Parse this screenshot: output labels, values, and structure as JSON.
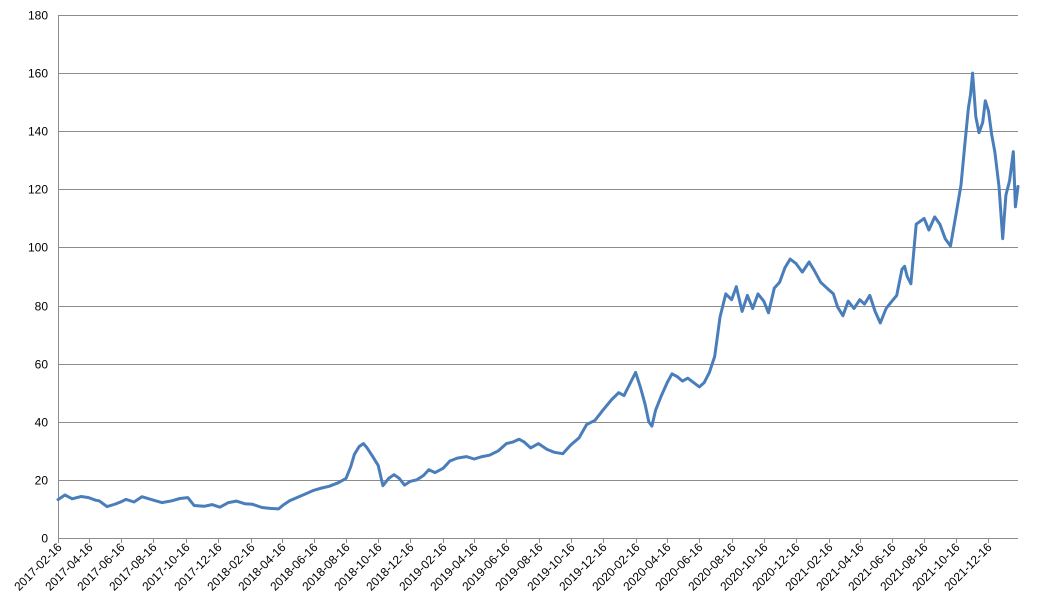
{
  "chart_data": {
    "type": "line",
    "title": "",
    "xlabel": "",
    "ylabel": "",
    "ylim": [
      0,
      180
    ],
    "y_ticks": [
      "0",
      "20",
      "40",
      "60",
      "80",
      "100",
      "120",
      "140",
      "160",
      "180"
    ],
    "xlim": [
      "2017-02-16",
      "2022-02-10"
    ],
    "x_tick_labels": [
      "2017-02-16",
      "2017-04-16",
      "2017-06-16",
      "2017-08-16",
      "2017-10-16",
      "2017-12-16",
      "2018-02-16",
      "2018-04-16",
      "2018-06-16",
      "2018-08-16",
      "2018-10-16",
      "2018-12-16",
      "2019-02-16",
      "2019-04-16",
      "2019-06-16",
      "2019-08-16",
      "2019-10-16",
      "2019-12-16",
      "2020-02-16",
      "2020-04-16",
      "2020-06-16",
      "2020-08-16",
      "2020-10-16",
      "2020-12-16",
      "2021-02-16",
      "2021-04-16",
      "2021-06-16",
      "2021-08-16",
      "2021-10-16",
      "2021-12-16"
    ],
    "grid": true,
    "legend": "none",
    "series_color": "#4a7ebb",
    "series": [
      {
        "x": [
          "2017-02-16",
          "2017-03-01",
          "2017-03-15",
          "2017-04-01",
          "2017-04-15",
          "2017-04-28",
          "2017-05-05",
          "2017-05-20",
          "2017-06-05",
          "2017-06-16",
          "2017-06-25",
          "2017-07-10",
          "2017-07-25",
          "2017-08-16",
          "2017-09-01",
          "2017-09-20",
          "2017-10-05",
          "2017-10-20",
          "2017-11-01",
          "2017-11-20",
          "2017-12-05",
          "2017-12-20",
          "2018-01-05",
          "2018-01-20",
          "2018-02-05",
          "2018-02-20",
          "2018-03-10",
          "2018-03-25",
          "2018-04-10",
          "2018-04-20",
          "2018-05-01",
          "2018-05-15",
          "2018-06-01",
          "2018-06-16",
          "2018-07-01",
          "2018-07-15",
          "2018-08-01",
          "2018-08-16",
          "2018-08-25",
          "2018-09-01",
          "2018-09-10",
          "2018-09-18",
          "2018-09-25",
          "2018-10-05",
          "2018-10-16",
          "2018-10-25",
          "2018-11-05",
          "2018-11-15",
          "2018-11-25",
          "2018-12-05",
          "2018-12-16",
          "2018-12-28",
          "2019-01-10",
          "2019-01-20",
          "2019-02-01",
          "2019-02-16",
          "2019-03-01",
          "2019-03-15",
          "2019-04-01",
          "2019-04-16",
          "2019-05-01",
          "2019-05-15",
          "2019-06-01",
          "2019-06-16",
          "2019-06-28",
          "2019-07-10",
          "2019-07-20",
          "2019-08-01",
          "2019-08-16",
          "2019-09-01",
          "2019-09-15",
          "2019-10-01",
          "2019-10-16",
          "2019-11-01",
          "2019-11-15",
          "2019-12-01",
          "2019-12-16",
          "2020-01-01",
          "2020-01-15",
          "2020-01-25",
          "2020-02-05",
          "2020-02-16",
          "2020-02-25",
          "2020-03-05",
          "2020-03-12",
          "2020-03-18",
          "2020-03-25",
          "2020-04-05",
          "2020-04-16",
          "2020-04-25",
          "2020-05-05",
          "2020-05-15",
          "2020-05-25",
          "2020-06-05",
          "2020-06-16",
          "2020-06-25",
          "2020-07-05",
          "2020-07-15",
          "2020-07-25",
          "2020-08-05",
          "2020-08-16",
          "2020-08-25",
          "2020-09-05",
          "2020-09-15",
          "2020-09-25",
          "2020-10-05",
          "2020-10-16",
          "2020-10-25",
          "2020-11-05",
          "2020-11-15",
          "2020-11-25",
          "2020-12-05",
          "2020-12-16",
          "2020-12-28",
          "2021-01-10",
          "2021-01-20",
          "2021-02-01",
          "2021-02-16",
          "2021-02-25",
          "2021-03-05",
          "2021-03-15",
          "2021-03-25",
          "2021-04-05",
          "2021-04-16",
          "2021-04-25",
          "2021-05-05",
          "2021-05-15",
          "2021-05-25",
          "2021-06-05",
          "2021-06-16",
          "2021-06-25",
          "2021-07-05",
          "2021-07-10",
          "2021-07-15",
          "2021-07-22",
          "2021-08-01",
          "2021-08-16",
          "2021-08-25",
          "2021-09-05",
          "2021-09-15",
          "2021-09-25",
          "2021-10-05",
          "2021-10-16",
          "2021-10-25",
          "2021-11-01",
          "2021-11-08",
          "2021-11-12",
          "2021-11-16",
          "2021-11-22",
          "2021-11-28",
          "2021-12-05",
          "2021-12-10",
          "2021-12-16",
          "2021-12-22",
          "2021-12-28",
          "2022-01-05",
          "2022-01-12",
          "2022-01-18",
          "2022-01-25",
          "2022-02-01",
          "2022-02-05",
          "2022-02-10"
        ],
        "values": [
          13.2,
          14.8,
          13.5,
          14.3,
          13.9,
          13.0,
          12.8,
          10.8,
          11.7,
          12.5,
          13.3,
          12.4,
          14.2,
          13.0,
          12.2,
          12.8,
          13.6,
          13.9,
          11.2,
          10.9,
          11.5,
          10.6,
          12.2,
          12.7,
          11.8,
          11.6,
          10.5,
          10.2,
          10.0,
          11.5,
          12.8,
          13.9,
          15.2,
          16.4,
          17.2,
          17.8,
          19.0,
          20.5,
          24.5,
          28.8,
          31.5,
          32.5,
          31.0,
          28.2,
          25.0,
          18.0,
          20.5,
          21.8,
          20.5,
          18.2,
          19.5,
          20.0,
          21.5,
          23.5,
          22.5,
          24.0,
          26.5,
          27.5,
          28.0,
          27.2,
          28.0,
          28.5,
          30.0,
          32.5,
          33.0,
          34.0,
          33.0,
          31.0,
          32.5,
          30.5,
          29.5,
          29.0,
          32.0,
          34.5,
          39.0,
          40.5,
          44.0,
          47.5,
          50.0,
          49.0,
          53.0,
          57.0,
          52.0,
          46.0,
          40.0,
          38.5,
          44.0,
          49.0,
          53.5,
          56.5,
          55.5,
          54.0,
          55.0,
          53.5,
          52.0,
          53.5,
          57.0,
          62.5,
          76.0,
          84.0,
          82.0,
          86.5,
          78.0,
          83.5,
          79.0,
          84.0,
          81.5,
          77.5,
          86.0,
          88.0,
          93.0,
          96.0,
          94.5,
          91.5,
          95.0,
          92.0,
          88.0,
          85.5,
          84.0,
          79.5,
          76.5,
          81.5,
          79.0,
          82.0,
          80.5,
          83.5,
          78.0,
          74.0,
          79.0,
          81.5,
          83.5,
          92.5,
          93.5,
          90.0,
          87.5,
          108.0,
          110.0,
          106.0,
          110.5,
          108.0,
          103.0,
          100.5,
          112.0,
          121.5,
          135.0,
          148.0,
          152.5,
          160.0,
          145.0,
          139.5,
          143.0,
          150.5,
          147.0,
          139.0,
          133.0,
          121.0,
          103.0,
          118.0,
          123.0,
          133.0,
          114.0,
          121.0
        ]
      }
    ]
  }
}
